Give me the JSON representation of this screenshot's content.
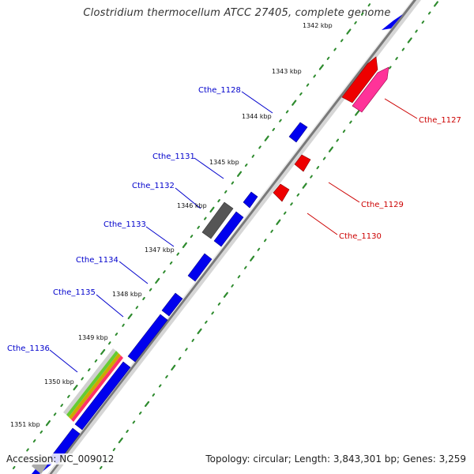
{
  "title": "Clostridium thermocellum ATCC 27405, complete genome",
  "footer": {
    "accession": "Accession: NC_009012",
    "summary": "Topology: circular; Length: 3,843,301 bp; Genes: 3,259"
  },
  "colors": {
    "forward_gene": "#0000ee",
    "reverse_gene": "#ee0000",
    "label_forward": "#0000cc",
    "label_reverse": "#cc0000",
    "backbone": "#808080",
    "tick_dots": "#2e8b2e",
    "pseudo_gene": "#555555",
    "rrna": "#ff3399"
  },
  "kbp_ticks": [
    {
      "id": "1342",
      "label": "1342 kbp"
    },
    {
      "id": "1343",
      "label": "1343 kbp"
    },
    {
      "id": "1344",
      "label": "1344 kbp"
    },
    {
      "id": "1345",
      "label": "1345 kbp"
    },
    {
      "id": "1346",
      "label": "1346 kbp"
    },
    {
      "id": "1347",
      "label": "1347 kbp"
    },
    {
      "id": "1348",
      "label": "1348 kbp"
    },
    {
      "id": "1349",
      "label": "1349 kbp"
    },
    {
      "id": "1350",
      "label": "1350 kbp"
    },
    {
      "id": "1351",
      "label": "1351 kbp"
    }
  ],
  "gene_labels": [
    {
      "id": "cthe-1128",
      "text": "Cthe_1128",
      "strand": "forward"
    },
    {
      "id": "cthe-1131",
      "text": "Cthe_1131",
      "strand": "forward"
    },
    {
      "id": "cthe-1132",
      "text": "Cthe_1132",
      "strand": "forward"
    },
    {
      "id": "cthe-1133",
      "text": "Cthe_1133",
      "strand": "forward"
    },
    {
      "id": "cthe-1134",
      "text": "Cthe_1134",
      "strand": "forward"
    },
    {
      "id": "cthe-1135",
      "text": "Cthe_1135",
      "strand": "forward"
    },
    {
      "id": "cthe-1136",
      "text": "Cthe_1136",
      "strand": "forward"
    },
    {
      "id": "cthe-1127",
      "text": "Cthe_1127",
      "strand": "reverse"
    },
    {
      "id": "cthe-1129",
      "text": "Cthe_1129",
      "strand": "reverse"
    },
    {
      "id": "cthe-1130",
      "text": "Cthe_1130",
      "strand": "reverse"
    }
  ]
}
